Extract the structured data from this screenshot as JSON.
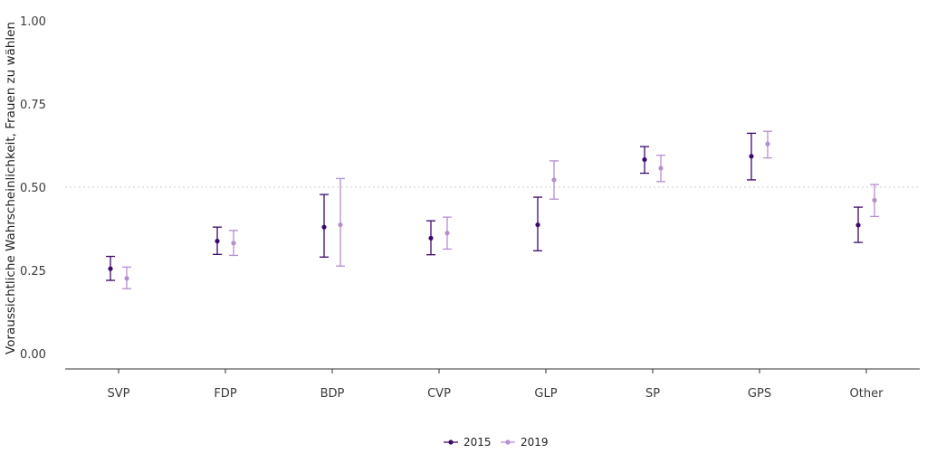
{
  "chart_data": {
    "type": "scatter",
    "ylabel": "Voraussichtliche Wahrscheinlichkeit, Frauen zu wählen",
    "xlabel": "",
    "ylim": [
      0,
      1
    ],
    "yticks": [
      "0.00",
      "0.25",
      "0.50",
      "0.75",
      "1.00"
    ],
    "ytick_values": [
      0,
      0.25,
      0.5,
      0.75,
      1.0
    ],
    "reference_line": 0.5,
    "grid": false,
    "legend_position": "bottom",
    "categories": [
      "SVP",
      "FDP",
      "BDP",
      "CVP",
      "GLP",
      "SP",
      "GPS",
      "Other"
    ],
    "series": [
      {
        "name": "2015",
        "color": "#3b0a6b",
        "values": [
          0.255,
          0.338,
          0.38,
          0.347,
          0.387,
          0.583,
          0.593,
          0.386
        ],
        "lower": [
          0.22,
          0.298,
          0.29,
          0.297,
          0.309,
          0.542,
          0.522,
          0.334
        ],
        "upper": [
          0.292,
          0.38,
          0.478,
          0.399,
          0.47,
          0.622,
          0.662,
          0.44
        ]
      },
      {
        "name": "2019",
        "color": "#b48fd0",
        "values": [
          0.226,
          0.332,
          0.387,
          0.362,
          0.522,
          0.557,
          0.63,
          0.461
        ],
        "lower": [
          0.195,
          0.295,
          0.263,
          0.314,
          0.464,
          0.517,
          0.588,
          0.412
        ],
        "upper": [
          0.26,
          0.37,
          0.526,
          0.41,
          0.579,
          0.596,
          0.668,
          0.508
        ]
      }
    ]
  }
}
